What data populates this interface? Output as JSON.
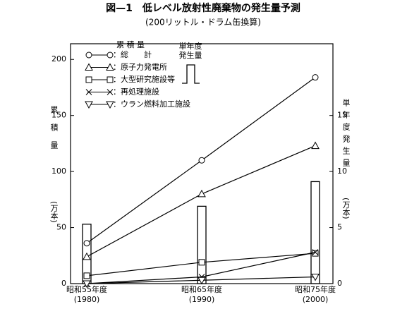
{
  "chart_data": {
    "type": "line",
    "title": "図—1　低レベル放射性廃棄物の発生量予測",
    "subtitle": "(200リットル・ドラム缶換算)",
    "ylabel": "累積量",
    "yunit": "(万本)",
    "y2label": "単年度発生量",
    "y2unit": "(万本)",
    "categories": [
      "昭和55年度",
      "昭和65年度",
      "昭和75年度"
    ],
    "category_years": [
      "(1980)",
      "(1990)",
      "(2000)"
    ],
    "legend_title": "累 積 量",
    "bar_legend": "単年度発生量",
    "series": [
      {
        "name": "：総　　計",
        "marker": "circle",
        "color": "#000",
        "values": [
          36,
          110,
          184
        ]
      },
      {
        "name": "：原子力発電所",
        "marker": "triangle-up",
        "color": "#000",
        "values": [
          24,
          80,
          123
        ]
      },
      {
        "name": "：大型研究施設等",
        "marker": "square",
        "color": "#000",
        "values": [
          7,
          19,
          27
        ]
      },
      {
        "name": "：再処理施設",
        "marker": "cross",
        "color": "#000",
        "values": [
          0,
          6,
          28
        ]
      },
      {
        "name": "：ウラン燃料加工施設",
        "marker": "triangle-down",
        "color": "#000",
        "values": [
          0,
          3,
          6
        ]
      },
      {
        "name": "単年度発生量",
        "type": "bar",
        "axis": "y2",
        "color": "#000",
        "values": [
          5.3,
          6.9,
          9.1
        ]
      }
    ],
    "ylim": [
      0,
      214
    ],
    "yticks": [
      0,
      50,
      100,
      150,
      200
    ],
    "y2lim": [
      0,
      21.4
    ],
    "y2ticks": [
      0,
      5,
      10,
      15
    ]
  }
}
